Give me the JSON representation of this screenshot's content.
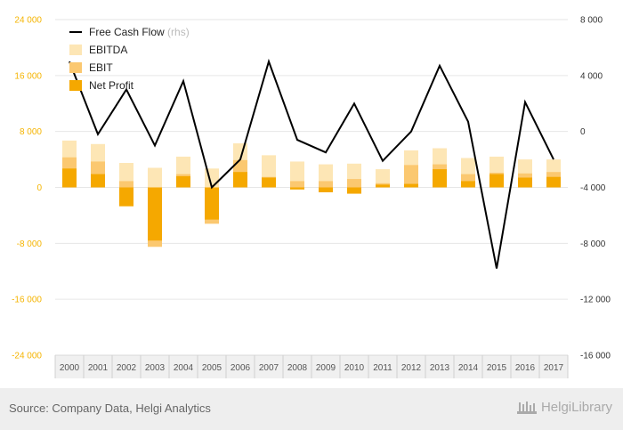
{
  "chart_data": {
    "type": "bar",
    "categories": [
      "2000",
      "2001",
      "2002",
      "2003",
      "2004",
      "2005",
      "2006",
      "2007",
      "2008",
      "2009",
      "2010",
      "2011",
      "2012",
      "2013",
      "2014",
      "2015",
      "2016",
      "2017"
    ],
    "series": [
      {
        "name": "EBITDA",
        "color": "#fde6b5",
        "values": [
          6700,
          6200,
          3500,
          2800,
          4400,
          2700,
          6300,
          4600,
          3700,
          3300,
          3400,
          2600,
          5300,
          5600,
          4200,
          4400,
          4000,
          4000
        ]
      },
      {
        "name": "EBIT",
        "color": "#fbc870",
        "values": [
          4300,
          3700,
          900,
          -8500,
          1900,
          -5200,
          3900,
          1500,
          900,
          900,
          1200,
          600,
          3200,
          3300,
          1900,
          2100,
          2000,
          2200
        ]
      },
      {
        "name": "Net Profit",
        "color": "#f5a800",
        "values": [
          2700,
          1900,
          -2700,
          -7600,
          1600,
          -4600,
          2200,
          1400,
          -300,
          -700,
          -900,
          400,
          500,
          2600,
          900,
          1900,
          1400,
          1500
        ]
      },
      {
        "name": "Free Cash Flow",
        "axis": "rhs",
        "color": "#000000",
        "values": [
          5000,
          -200,
          3000,
          -1000,
          3600,
          -4000,
          -2000,
          5000,
          -600,
          -1500,
          2000,
          -2100,
          0,
          4700,
          700,
          -9800,
          2100,
          -2000
        ]
      }
    ],
    "legend": {
      "entries": [
        "Free Cash Flow",
        "EBITDA",
        "EBIT",
        "Net Profit"
      ],
      "rhs_suffix": "(rhs)",
      "placement": "top-left"
    },
    "y_left": {
      "ticks": [
        24000,
        16000,
        8000,
        0,
        -8000,
        -16000,
        -24000
      ],
      "labels": [
        "24 000",
        "16 000",
        "8 000",
        "0",
        "-8 000",
        "-16 000",
        "-24 000"
      ],
      "ylim": [
        -24000,
        24000
      ],
      "color": "#f5b400"
    },
    "y_right": {
      "ticks": [
        8000,
        4000,
        0,
        -4000,
        -8000,
        -12000,
        -16000
      ],
      "labels": [
        "8 000",
        "4 000",
        "0",
        "-4 000",
        "-8 000",
        "-12 000",
        "-16 000"
      ],
      "ylim": [
        -16000,
        8000
      ]
    },
    "title": "",
    "xlabel": "",
    "ylabel": "",
    "grid": true
  },
  "footer": {
    "source": "Source: Company Data, Helgi Analytics",
    "brand": "HelgiLibrary"
  }
}
